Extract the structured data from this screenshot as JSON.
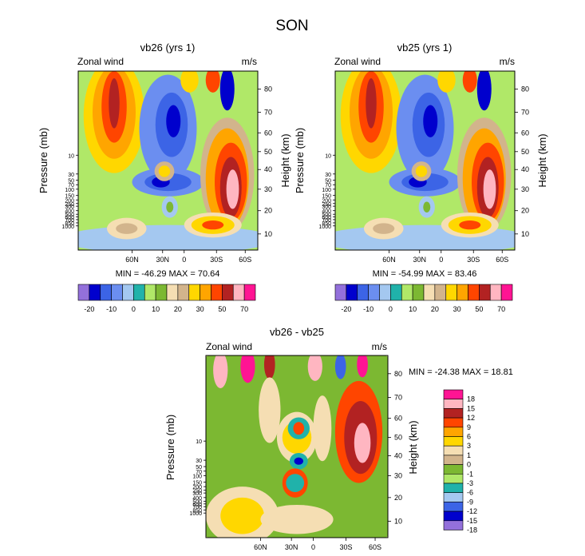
{
  "figure_title": "SON",
  "chart_data": [
    {
      "type": "heatmap",
      "title": "vb26 (yrs 1)",
      "subtitle_left": "Zonal wind",
      "subtitle_right": "m/s",
      "ylabel": "Pressure (mb)",
      "ylabel_right": "Height (km)",
      "x_tick_labels": [
        "60N",
        "30N",
        "0",
        "30S",
        "60S"
      ],
      "left_tick_labels": [
        "10",
        "30",
        "50",
        "70",
        "100",
        "150",
        "200",
        "250",
        "300",
        "400",
        "500",
        "600",
        "700",
        "850",
        "1000"
      ],
      "right_tick_labels": [
        "80",
        "70",
        "60",
        "50",
        "40",
        "30",
        "20",
        "10"
      ],
      "min_max_text": "MIN = -46.29   MAX =  70.64",
      "colorbar_labels": [
        "-20",
        "-10",
        "0",
        "10",
        "20",
        "30",
        "50",
        "70"
      ],
      "colors": [
        "#9370db",
        "#0000cd",
        "#3c64e6",
        "#6b8ef0",
        "#a4c8f0",
        "#20b2aa",
        "#b0e868",
        "#7cb832",
        "#f5deb3",
        "#d2b48c",
        "#ffd700",
        "#ffa500",
        "#ff4500",
        "#b22222",
        "#ffb6c1",
        "#ff1493"
      ]
    },
    {
      "type": "heatmap",
      "title": "vb25 (yrs 1)",
      "subtitle_left": "Zonal wind",
      "subtitle_right": "m/s",
      "ylabel": "Pressure (mb)",
      "ylabel_right": "Height (km)",
      "x_tick_labels": [
        "60N",
        "30N",
        "0",
        "30S",
        "60S"
      ],
      "left_tick_labels": [
        "10",
        "30",
        "50",
        "70",
        "100",
        "150",
        "200",
        "250",
        "300",
        "400",
        "500",
        "600",
        "700",
        "850",
        "1000"
      ],
      "right_tick_labels": [
        "80",
        "70",
        "60",
        "50",
        "40",
        "30",
        "20",
        "10"
      ],
      "min_max_text": "MIN = -54.99   MAX =  83.46",
      "colorbar_labels": [
        "-20",
        "-10",
        "0",
        "10",
        "20",
        "30",
        "50",
        "70"
      ],
      "colors": [
        "#9370db",
        "#0000cd",
        "#3c64e6",
        "#6b8ef0",
        "#a4c8f0",
        "#20b2aa",
        "#b0e868",
        "#7cb832",
        "#f5deb3",
        "#d2b48c",
        "#ffd700",
        "#ffa500",
        "#ff4500",
        "#b22222",
        "#ffb6c1",
        "#ff1493"
      ]
    },
    {
      "type": "heatmap",
      "title": "vb26 - vb25",
      "subtitle_left": "Zonal wind",
      "subtitle_right": "m/s",
      "ylabel": "Pressure (mb)",
      "ylabel_right": "Height (km)",
      "x_tick_labels": [
        "60N",
        "30N",
        "0",
        "30S",
        "60S"
      ],
      "left_tick_labels": [
        "10",
        "30",
        "50",
        "70",
        "100",
        "150",
        "200",
        "250",
        "300",
        "400",
        "500",
        "600",
        "700",
        "850",
        "1000"
      ],
      "right_tick_labels": [
        "80",
        "70",
        "60",
        "50",
        "40",
        "30",
        "20",
        "10"
      ],
      "min_max_text": "MIN = -24.38   MAX =  18.81",
      "colorbar_labels": [
        "18",
        "15",
        "12",
        "9",
        "6",
        "3",
        "1",
        "0",
        "-1",
        "-3",
        "-6",
        "-9",
        "-12",
        "-15",
        "-18"
      ],
      "colors": [
        "#ff1493",
        "#ffb6c1",
        "#b22222",
        "#ff4500",
        "#ffa500",
        "#ffd700",
        "#f5deb3",
        "#d2b48c",
        "#7cb832",
        "#b0e868",
        "#20b2aa",
        "#a4c8f0",
        "#3c64e6",
        "#0000cd",
        "#9370db"
      ]
    }
  ]
}
